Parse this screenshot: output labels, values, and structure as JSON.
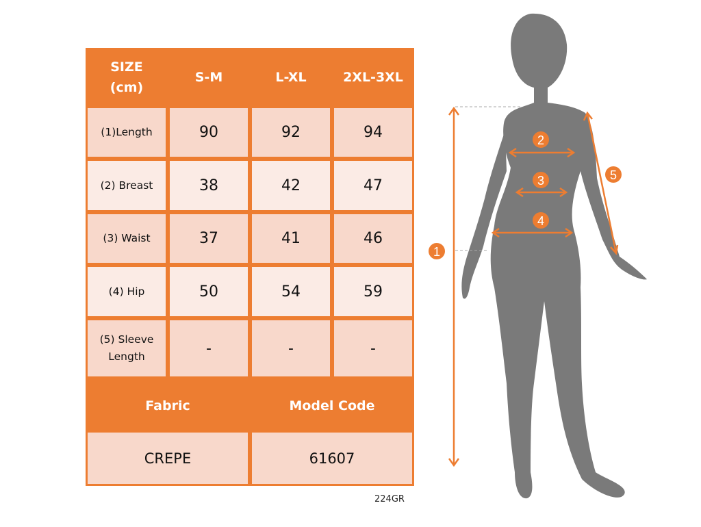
{
  "table": {
    "header": [
      "SIZE\n(cm)",
      "S-M",
      "L-XL",
      "2XL-3XL"
    ],
    "rows": [
      {
        "label": "(1)Length",
        "values": [
          "90",
          "92",
          "94"
        ]
      },
      {
        "label": "(2) Breast",
        "values": [
          "38",
          "42",
          "47"
        ]
      },
      {
        "label": "(3) Waist",
        "values": [
          "37",
          "41",
          "46"
        ]
      },
      {
        "label": "(4) Hip",
        "values": [
          "50",
          "54",
          "59"
        ]
      },
      {
        "label": "(5) Sleeve\nLength",
        "values": [
          "-",
          "-",
          "-"
        ]
      }
    ],
    "footer_headers": [
      "Fabric",
      "Model Code"
    ],
    "footer_values": [
      "CREPE",
      "61607"
    ]
  },
  "product_code": "224GR",
  "figure": {
    "markers": [
      "1",
      "2",
      "3",
      "4",
      "5"
    ]
  },
  "colors": {
    "accent": "#ED7D31",
    "cell_dark": "#F8D8CB",
    "cell_light": "#FBEBE5",
    "silhouette": "#7A7A7A"
  }
}
